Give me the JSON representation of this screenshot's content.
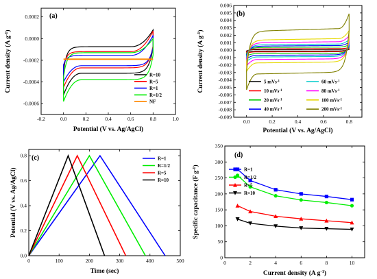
{
  "panels": [
    {
      "label": "(a)",
      "chart_data": {
        "type": "line",
        "title": "",
        "xlabel": "Potential (V vs. Ag/AgCl)",
        "ylabel": "Current density (A g^-1)",
        "xlim": [
          -0.2,
          1.0
        ],
        "ylim": [
          -0.0007,
          0.00028
        ],
        "xticks": [
          -0.2,
          0.0,
          0.2,
          0.4,
          0.6,
          0.8,
          1.0
        ],
        "xtick_labels": [
          "-0.2",
          "0.0",
          "0.2",
          "0.4",
          "0.6",
          "0.8",
          "1.0"
        ],
        "yticks": [
          -0.0006,
          -0.0004,
          -0.0002,
          0.0,
          0.0002
        ],
        "ytick_labels": [
          "-0.0006",
          "-0.0004",
          "-0.0002",
          "0.0000",
          "0.0002"
        ],
        "legend_position": "bottom-right",
        "grid": false,
        "series": [
          {
            "name": "R=10",
            "color": "#000000",
            "ybase_up": -7.5e-05,
            "ybase_down": -0.00032,
            "anodic_peak": 8e-05,
            "cathodic_start": -0.00052
          },
          {
            "name": "R=5",
            "color": "#ff0000",
            "ybase_up": -0.00012,
            "ybase_down": -0.00027,
            "anodic_peak": 7e-05,
            "cathodic_start": -0.00045
          },
          {
            "name": "R=1",
            "color": "#0000ff",
            "ybase_up": -0.000155,
            "ybase_down": -0.00025,
            "anodic_peak": 3e-05,
            "cathodic_start": -0.0004
          },
          {
            "name": "R=1/2",
            "color": "#00ee00",
            "ybase_up": -0.00013,
            "ybase_down": -0.00038,
            "anodic_peak": 0.0,
            "cathodic_start": -0.00058
          },
          {
            "name": "NF",
            "color": "#ff8800",
            "ybase_up": -0.00019,
            "ybase_down": -0.00021,
            "anodic_peak": -0.00019,
            "cathodic_start": -0.00021
          }
        ]
      }
    },
    {
      "label": "(b)",
      "chart_data": {
        "type": "line",
        "title": "",
        "xlabel": "Potential (V vs. Ag/AgCl)",
        "ylabel": "Current density (A g^-1)",
        "xlim": [
          -0.1,
          0.9
        ],
        "ylim": [
          -0.009,
          0.006
        ],
        "xticks": [
          0.0,
          0.2,
          0.4,
          0.6,
          0.8
        ],
        "xtick_labels": [
          "0.0",
          "0.2",
          "0.4",
          "0.6",
          "0.8"
        ],
        "yticks": [
          -0.009,
          -0.008,
          -0.007,
          -0.006,
          -0.005,
          -0.004,
          -0.003,
          -0.002,
          -0.001,
          0.0,
          0.001,
          0.002,
          0.003,
          0.004,
          0.005,
          0.006
        ],
        "ytick_labels": [
          "-0.009",
          "-0.008",
          "-0.007",
          "-0.006",
          "-0.005",
          "-0.004",
          "-0.003",
          "-0.002",
          "-0.001",
          "0.000",
          "0.001",
          "0.002",
          "0.003",
          "0.004",
          "0.005",
          "0.006"
        ],
        "legend_position": "bottom-right",
        "grid": false,
        "series": [
          {
            "name": "5 mVs^-1",
            "color": "#000000",
            "amp": 0.0001
          },
          {
            "name": "10 mVs^-1",
            "color": "#ff0000",
            "amp": 0.0002
          },
          {
            "name": "20 mVs^-1",
            "color": "#00cc00",
            "amp": 0.0004
          },
          {
            "name": "40 mVs^-1",
            "color": "#0000ff",
            "amp": 0.0006
          },
          {
            "name": "60 mVs^-1",
            "color": "#00cccc",
            "amp": 0.0008
          },
          {
            "name": "80 mVs^-1",
            "color": "#ff00ff",
            "amp": 0.0011
          },
          {
            "name": "100 mVs^-1",
            "color": "#e6d800",
            "amp": 0.0015
          },
          {
            "name": "200 mVs^-1",
            "color": "#808000",
            "amp": 0.0028
          }
        ]
      }
    },
    {
      "label": "(c)",
      "chart_data": {
        "type": "line",
        "title": "",
        "xlabel": "Time (sec)",
        "ylabel": "Potential (V vs. Ag/AgCl)",
        "xlim": [
          0,
          500
        ],
        "ylim": [
          0.0,
          0.85
        ],
        "xticks": [
          0,
          100,
          200,
          300,
          400,
          500
        ],
        "xtick_labels": [
          "0",
          "100",
          "200",
          "300",
          "400",
          "500"
        ],
        "yticks": [
          0.0,
          0.2,
          0.4,
          0.6,
          0.8
        ],
        "ytick_labels": [
          "0.0",
          "0.2",
          "0.4",
          "0.6",
          "0.8"
        ],
        "legend_position": "top-right",
        "grid": false,
        "series": [
          {
            "name": "R=1",
            "color": "#0000ff",
            "x": [
              0,
              235,
              450
            ],
            "y": [
              0.0,
              0.8,
              0.0
            ]
          },
          {
            "name": "R=1/2",
            "color": "#00ee00",
            "x": [
              0,
              200,
              385
            ],
            "y": [
              0.0,
              0.8,
              0.0
            ]
          },
          {
            "name": "R=5",
            "color": "#ff0000",
            "x": [
              0,
              160,
              320
            ],
            "y": [
              0.0,
              0.8,
              0.0
            ]
          },
          {
            "name": "R=10",
            "color": "#000000",
            "x": [
              0,
              130,
              250
            ],
            "y": [
              0.0,
              0.8,
              0.0
            ]
          }
        ]
      }
    },
    {
      "label": "(d)",
      "chart_data": {
        "type": "line",
        "title": "",
        "xlabel": "Current density (A g^-1)",
        "ylabel": "Specific capacitance (F g^-1)",
        "xlim": [
          0,
          11
        ],
        "ylim": [
          0,
          350
        ],
        "xticks": [
          0,
          2,
          4,
          6,
          8,
          10
        ],
        "xtick_labels": [
          "0",
          "2",
          "4",
          "6",
          "8",
          "10"
        ],
        "yticks": [
          0,
          50,
          100,
          150,
          200,
          250,
          300,
          350
        ],
        "ytick_labels": [
          "0",
          "50",
          "100",
          "150",
          "200",
          "250",
          "300",
          "350"
        ],
        "legend_position": "top-left",
        "grid": false,
        "series": [
          {
            "name": "R=1",
            "color": "#0000ff",
            "marker": "square",
            "x": [
              1,
              2,
              4,
              6,
              8,
              10
            ],
            "y": [
              277,
              242,
              213,
              200,
              192,
              182
            ]
          },
          {
            "name": "R=1/2",
            "color": "#00ee00",
            "marker": "circle",
            "x": [
              1,
              2,
              4,
              6,
              8,
              10
            ],
            "y": [
              258,
              222,
              194,
              181,
              173,
              163
            ]
          },
          {
            "name": "R=5",
            "color": "#ff0000",
            "marker": "triangle",
            "x": [
              1,
              2,
              4,
              6,
              8,
              10
            ],
            "y": [
              163,
              145,
              130,
              122,
              116,
              110
            ]
          },
          {
            "name": "R=10",
            "color": "#000000",
            "marker": "triangle-down",
            "x": [
              1,
              2,
              4,
              6,
              8,
              10
            ],
            "y": [
              121,
              108,
              99,
              93,
              91,
              89
            ]
          }
        ]
      }
    }
  ]
}
